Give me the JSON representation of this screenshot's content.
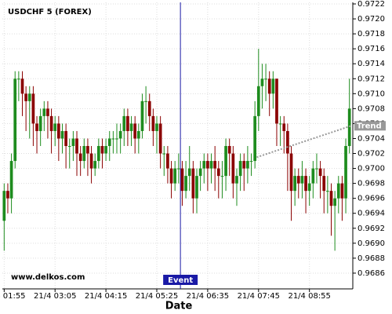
{
  "chart_data": {
    "type": "candlestick",
    "title": "USDCHF 5 (FOREX)",
    "x_label": "Date",
    "watermark": "www.delkos.com",
    "categories": [
      "21/4 01:55",
      null,
      null,
      null,
      null,
      null,
      null,
      null,
      null,
      null,
      null,
      null,
      null,
      null,
      "21/4 03:05",
      null,
      null,
      null,
      null,
      null,
      null,
      null,
      null,
      null,
      null,
      null,
      null,
      null,
      "21/4 04:15",
      null,
      null,
      null,
      null,
      null,
      null,
      null,
      null,
      null,
      null,
      null,
      null,
      null,
      "21/4 05:25",
      null,
      null,
      null,
      null,
      null,
      null,
      null,
      null,
      null,
      null,
      null,
      null,
      null,
      "21/4 06:35",
      null,
      null,
      null,
      null,
      null,
      null,
      null,
      null,
      null,
      null,
      null,
      null,
      null,
      "21/4 07:45",
      null,
      null,
      null,
      null,
      null,
      null,
      null,
      null,
      null,
      null,
      null,
      null,
      null,
      "21/4 08:55",
      null,
      null,
      null,
      null,
      null,
      null,
      null,
      null,
      null,
      null,
      null
    ],
    "open": [
      0.9693,
      0.9697,
      0.9696,
      0.9701,
      0.9712,
      0.9712,
      0.971,
      0.9709,
      0.971,
      0.9706,
      0.9705,
      0.9707,
      0.9708,
      0.9707,
      0.9705,
      0.9706,
      0.9704,
      0.9705,
      0.9703,
      0.9703,
      0.9704,
      0.9702,
      0.9701,
      0.9703,
      0.9702,
      0.97,
      0.9701,
      0.9703,
      0.9702,
      0.9703,
      0.9704,
      0.9704,
      0.9704,
      0.9705,
      0.9707,
      0.9705,
      0.9706,
      0.9704,
      0.9705,
      0.9709,
      0.9709,
      0.9707,
      0.9705,
      0.9706,
      0.9702,
      0.9702,
      0.97,
      0.9698,
      0.97,
      0.97,
      0.9697,
      0.9699,
      0.97,
      0.9696,
      0.9699,
      0.97,
      0.9701,
      0.97,
      0.9701,
      0.97,
      0.9699,
      0.9699,
      0.9703,
      0.9702,
      0.9698,
      0.9699,
      0.9701,
      0.97,
      0.9701,
      0.9701,
      0.9707,
      0.9711,
      0.9712,
      0.9712,
      0.971,
      0.9712,
      0.9706,
      0.9706,
      0.9705,
      0.9702,
      0.9697,
      0.9699,
      0.9698,
      0.9699,
      0.9697,
      0.9698,
      0.97,
      0.97,
      0.9699,
      0.9697,
      0.9697,
      0.9695,
      0.9696,
      0.9698,
      0.9696,
      0.9703
    ],
    "close": [
      0.9697,
      0.9696,
      0.9701,
      0.9712,
      0.9712,
      0.971,
      0.9709,
      0.971,
      0.9706,
      0.9705,
      0.9707,
      0.9708,
      0.9707,
      0.9705,
      0.9706,
      0.9704,
      0.9705,
      0.9703,
      0.9703,
      0.9704,
      0.9702,
      0.9701,
      0.9703,
      0.9702,
      0.97,
      0.9701,
      0.9703,
      0.9702,
      0.9703,
      0.9704,
      0.9704,
      0.9704,
      0.9705,
      0.9707,
      0.9705,
      0.9706,
      0.9704,
      0.9705,
      0.9709,
      0.9709,
      0.9707,
      0.9705,
      0.9706,
      0.9702,
      0.9702,
      0.97,
      0.9698,
      0.97,
      0.97,
      0.9697,
      0.9699,
      0.97,
      0.9696,
      0.9699,
      0.97,
      0.9701,
      0.97,
      0.9701,
      0.97,
      0.9699,
      0.9699,
      0.9703,
      0.9702,
      0.9698,
      0.9699,
      0.9701,
      0.97,
      0.9701,
      0.9701,
      0.9707,
      0.9711,
      0.9712,
      0.9712,
      0.971,
      0.9712,
      0.9706,
      0.9706,
      0.9705,
      0.9702,
      0.9697,
      0.9699,
      0.9698,
      0.9699,
      0.9697,
      0.9698,
      0.97,
      0.97,
      0.9699,
      0.9697,
      0.9697,
      0.9695,
      0.9696,
      0.9698,
      0.9696,
      0.9703,
      0.9708
    ],
    "high": [
      0.9698,
      0.9698,
      0.9702,
      0.9713,
      0.9713,
      0.9713,
      0.9711,
      0.9711,
      0.9711,
      0.9707,
      0.9708,
      0.9709,
      0.9709,
      0.9708,
      0.9707,
      0.9707,
      0.9706,
      0.9706,
      0.9704,
      0.9705,
      0.9705,
      0.9703,
      0.9704,
      0.9704,
      0.9703,
      0.9702,
      0.9704,
      0.9704,
      0.9704,
      0.9705,
      0.9705,
      0.9706,
      0.9706,
      0.9708,
      0.9708,
      0.9707,
      0.9707,
      0.9706,
      0.971,
      0.9711,
      0.971,
      0.9708,
      0.9707,
      0.9707,
      0.9703,
      0.9703,
      0.9701,
      0.9701,
      0.9702,
      0.9701,
      0.9701,
      0.9703,
      0.9701,
      0.97,
      0.9701,
      0.9702,
      0.9702,
      0.9702,
      0.9703,
      0.9701,
      0.9701,
      0.9704,
      0.9704,
      0.9703,
      0.97,
      0.9702,
      0.9702,
      0.9703,
      0.9702,
      0.9709,
      0.9716,
      0.9714,
      0.9714,
      0.9713,
      0.9713,
      0.9712,
      0.9707,
      0.9707,
      0.9706,
      0.9703,
      0.97,
      0.97,
      0.9701,
      0.97,
      0.9699,
      0.9701,
      0.9702,
      0.9701,
      0.97,
      0.9699,
      0.9698,
      0.9697,
      0.9699,
      0.9699,
      0.9704,
      0.9712
    ],
    "low": [
      0.9689,
      0.9694,
      0.9694,
      0.97,
      0.9709,
      0.9707,
      0.9705,
      0.9704,
      0.9703,
      0.9702,
      0.9703,
      0.9705,
      0.9704,
      0.9702,
      0.9703,
      0.9701,
      0.9702,
      0.97,
      0.97,
      0.9701,
      0.9699,
      0.9699,
      0.97,
      0.9699,
      0.9698,
      0.9699,
      0.97,
      0.97,
      0.9701,
      0.9701,
      0.9702,
      0.9702,
      0.9702,
      0.9703,
      0.9703,
      0.9703,
      0.9702,
      0.9702,
      0.9704,
      0.9706,
      0.9705,
      0.9703,
      0.9702,
      0.97,
      0.9699,
      0.9698,
      0.9696,
      0.9697,
      0.9698,
      0.9695,
      0.9696,
      0.9697,
      0.9694,
      0.9694,
      0.9697,
      0.9698,
      0.9697,
      0.9698,
      0.9697,
      0.9696,
      0.9696,
      0.9697,
      0.9699,
      0.9696,
      0.9695,
      0.9697,
      0.9697,
      0.9698,
      0.9699,
      0.97,
      0.9705,
      0.9708,
      0.9709,
      0.9707,
      0.9708,
      0.9703,
      0.9703,
      0.9702,
      0.9697,
      0.9693,
      0.9695,
      0.9696,
      0.9696,
      0.9694,
      0.9695,
      0.9696,
      0.9698,
      0.9696,
      0.9694,
      0.9694,
      0.9691,
      0.9689,
      0.9694,
      0.9693,
      0.9694,
      0.9702
    ],
    "up_color": "#1e8c1e",
    "down_color": "#8b0000",
    "ylim": [
      0.9684,
      0.9722
    ],
    "yticks": [
      0.9686,
      0.9688,
      {
        "value": 0.969,
        "label": "0.9690"
      },
      0.9692,
      0.9694,
      0.9696,
      0.9698,
      {
        "value": 0.97,
        "label": "0.9700"
      },
      0.9702,
      0.9704,
      0.9706,
      0.9708,
      {
        "value": 0.971,
        "label": "0.9710"
      },
      0.9712,
      0.9714,
      0.9716,
      0.9718,
      {
        "value": 0.972,
        "label": "0.9720"
      },
      0.9722
    ],
    "grid": true,
    "event": {
      "label": "Event",
      "index": 49,
      "color": "#1a1aa6"
    },
    "trend": {
      "label": "Trend",
      "x": [
        70,
        96
      ],
      "values": [
        0.97015,
        0.97057
      ],
      "color": "#999999"
    }
  }
}
